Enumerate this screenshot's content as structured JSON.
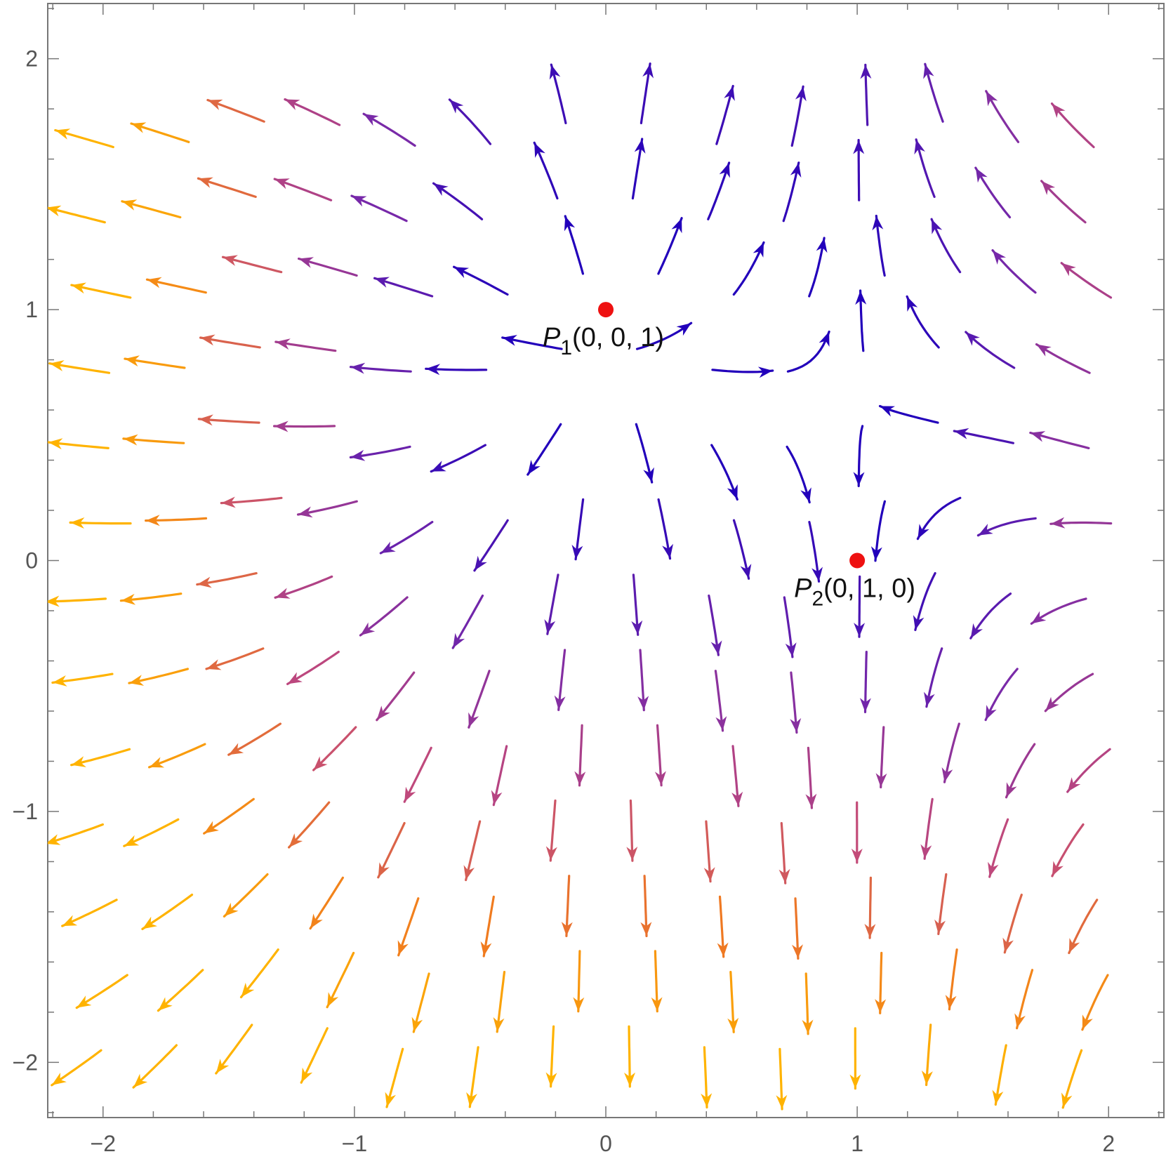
{
  "chart_data": {
    "type": "stream",
    "title": "",
    "xlabel": "",
    "ylabel": "",
    "xlim": [
      -2.22,
      2.22
    ],
    "ylim": [
      -2.22,
      2.22
    ],
    "x_ticks": [
      -2,
      -1,
      0,
      1,
      2
    ],
    "x_tick_labels": [
      "−2",
      "−1",
      "0",
      "1",
      "2"
    ],
    "y_ticks": [
      -2,
      -1,
      0,
      1,
      2
    ],
    "y_tick_labels": [
      "−2",
      "−1",
      "0",
      "1",
      "2"
    ],
    "minor_tick_step": 0.2,
    "grid": false,
    "vector_field": {
      "sources": [
        [
          0,
          1
        ]
      ],
      "saddles": [
        [
          1,
          0
        ]
      ],
      "color_scale": [
        "#2200bb",
        "#7a2aa8",
        "#c24a7a",
        "#f07a20",
        "#ffb300"
      ]
    },
    "points": [
      {
        "name": "P1",
        "x": 0,
        "y": 1,
        "label_main": "P",
        "label_sub": "1",
        "label_rest": "(0, 0, 1)",
        "color": "#ee1111"
      },
      {
        "name": "P2",
        "x": 1,
        "y": 0,
        "label_main": "P",
        "label_sub": "2",
        "label_rest": "(0, 1, 0)",
        "color": "#ee1111"
      }
    ]
  }
}
